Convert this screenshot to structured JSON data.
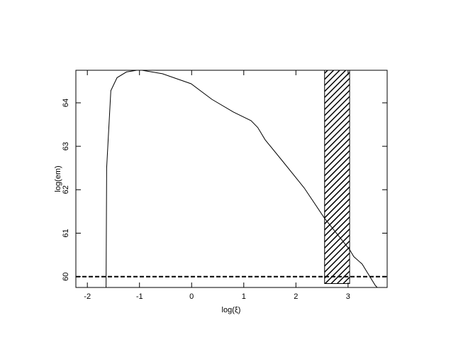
{
  "chart_data": {
    "type": "line",
    "xlabel": "log(ξ)",
    "ylabel": "log(em)",
    "xlim": [
      -2.22,
      3.75
    ],
    "ylim": [
      59.75,
      64.75
    ],
    "xticks": [
      -2,
      -1,
      0,
      1,
      2,
      3
    ],
    "yticks": [
      60,
      61,
      62,
      63,
      64
    ],
    "series": [
      {
        "color": "#000000",
        "x": [
          -1.64,
          -1.63,
          -1.55,
          -1.43,
          -1.25,
          -1.0,
          -0.56,
          -0.01,
          0.39,
          0.8,
          1.14,
          1.27,
          1.41,
          1.75,
          2.16,
          2.55,
          3.03,
          3.11,
          3.27,
          3.52,
          3.56
        ],
        "values": [
          59.75,
          62.5,
          64.28,
          64.58,
          64.71,
          64.76,
          64.67,
          64.44,
          64.08,
          63.79,
          63.59,
          63.43,
          63.15,
          62.65,
          62.04,
          61.34,
          60.62,
          60.46,
          60.29,
          59.8,
          59.75
        ]
      }
    ],
    "bands": [
      {
        "x": [
          2.55,
          3.03
        ],
        "y": [
          59.84,
          64.75
        ],
        "fill": "hatched"
      }
    ],
    "hlines": [
      {
        "y": 60.0,
        "style": "dashed"
      }
    ]
  }
}
